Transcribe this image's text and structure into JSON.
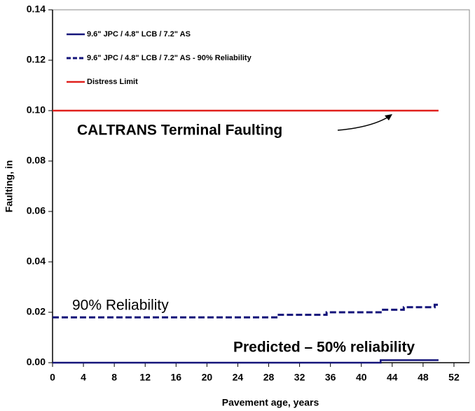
{
  "chart_data": {
    "type": "line",
    "x_label": "Pavement age, years",
    "y_label": "Faulting, in",
    "xlim": [
      0,
      54
    ],
    "ylim": [
      0,
      0.14
    ],
    "xticks": [
      0,
      4,
      8,
      12,
      16,
      20,
      24,
      28,
      32,
      36,
      40,
      44,
      48,
      52
    ],
    "yticks": [
      {
        "value": 0,
        "label": "0.00"
      },
      {
        "value": 0.02,
        "label": "0.02"
      },
      {
        "value": 0.04,
        "label": "0.04"
      },
      {
        "value": 0.06,
        "label": "0.06"
      },
      {
        "value": 0.08,
        "label": "0.08"
      },
      {
        "value": 0.1,
        "label": "0.10"
      },
      {
        "value": 0.12,
        "label": "0.12"
      },
      {
        "value": 0.14,
        "label": "0.14"
      }
    ],
    "legend": "upper left",
    "series": [
      {
        "name": "9.6\" JPC / 4.8\" LCB / 7.2\" AS",
        "color": "#14147a",
        "dash": false,
        "x": [
          0,
          42.5,
          42.5,
          50
        ],
        "values": [
          0,
          0,
          0.001,
          0.001
        ]
      },
      {
        "name": "9.6\" JPC / 4.8\" LCB / 7.2\" AS - 90% Reliability",
        "color": "#14147a",
        "dash": true,
        "x": [
          0,
          29,
          29,
          35.5,
          35.5,
          42.5,
          42.5,
          45.5,
          45.5,
          49.5,
          49.5,
          50
        ],
        "values": [
          0.018,
          0.018,
          0.019,
          0.019,
          0.02,
          0.02,
          0.021,
          0.021,
          0.022,
          0.022,
          0.023,
          0.023
        ]
      },
      {
        "name": "Distress Limit",
        "color": "#e0201c",
        "dash": false,
        "x": [
          0,
          50
        ],
        "values": [
          0.1,
          0.1
        ]
      }
    ],
    "annotations": [
      "CALTRANS Terminal Faulting",
      "90% Reliability",
      "Predicted – 50% reliability"
    ]
  }
}
